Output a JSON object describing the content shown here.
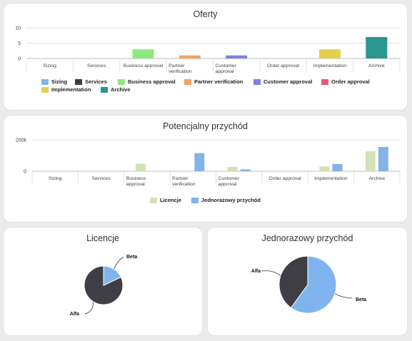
{
  "colors": {
    "sizing": "#7fb8e6",
    "services": "#3d3d42",
    "business_approval": "#8ee87f",
    "partner_verification": "#f4a260",
    "customer_approval": "#8080e6",
    "order_approval": "#e8587a",
    "implementation": "#e3d14e",
    "archive": "#2a9690",
    "licencje": "#d3e2b8",
    "jednorazowy": "#84b3e6",
    "pie_beta": "#7fb4ee",
    "pie_alfa": "#3e3e44"
  },
  "chart_data": [
    {
      "type": "bar",
      "title": "Oferty",
      "categories": [
        "Sizing",
        "Services",
        "Business approval",
        "Partner verification",
        "Customer approval",
        "Order approval",
        "Implementation",
        "Archive"
      ],
      "category_labels": [
        [
          "Sizing"
        ],
        [
          "Services"
        ],
        [
          "Business approval"
        ],
        [
          "Partner",
          "verification"
        ],
        [
          "Customer",
          "approval"
        ],
        [
          "Order approval"
        ],
        [
          "Implementation"
        ],
        [
          "Archive"
        ]
      ],
      "values": [
        0,
        0,
        3,
        1,
        1,
        0,
        3,
        7
      ],
      "ylim": [
        0,
        10
      ],
      "yticks": [
        "10",
        "5",
        "0"
      ],
      "grid": true,
      "legend_position": "bottom",
      "legend": [
        "Sizing",
        "Services",
        "Business approval",
        "Partner verification",
        "Customer approval",
        "Order approval",
        "Implementation",
        "Archive"
      ]
    },
    {
      "type": "bar",
      "title": "Potencjalny przychód",
      "categories": [
        "Sizing",
        "Services",
        "Business approval",
        "Partner verification",
        "Customer approval",
        "Order approval",
        "Implementation",
        "Archive"
      ],
      "category_labels": [
        [
          "Sizing"
        ],
        [
          "Services"
        ],
        [
          "Business",
          "approval"
        ],
        [
          "Partner",
          "verification"
        ],
        [
          "Customer",
          "approval"
        ],
        [
          "Order approval"
        ],
        [
          "Implementation"
        ],
        [
          "Archive"
        ]
      ],
      "series": [
        {
          "name": "Licencje",
          "values": [
            0,
            0,
            48000,
            0,
            28000,
            0,
            30000,
            128000
          ]
        },
        {
          "name": "Jednorazowy przychód",
          "values": [
            0,
            0,
            0,
            115000,
            12000,
            0,
            46000,
            155000
          ]
        }
      ],
      "ylim": [
        0,
        200000
      ],
      "yticks": [
        "200k",
        "0"
      ],
      "grid": true,
      "legend_position": "bottom"
    },
    {
      "type": "pie",
      "title": "Licencje",
      "slices": [
        {
          "label": "Beta",
          "value": 18
        },
        {
          "label": "Alfa",
          "value": 82
        }
      ]
    },
    {
      "type": "pie",
      "title": "Jednorazowy przychód",
      "slices": [
        {
          "label": "Beta",
          "value": 60
        },
        {
          "label": "Alfa",
          "value": 40
        }
      ]
    }
  ]
}
